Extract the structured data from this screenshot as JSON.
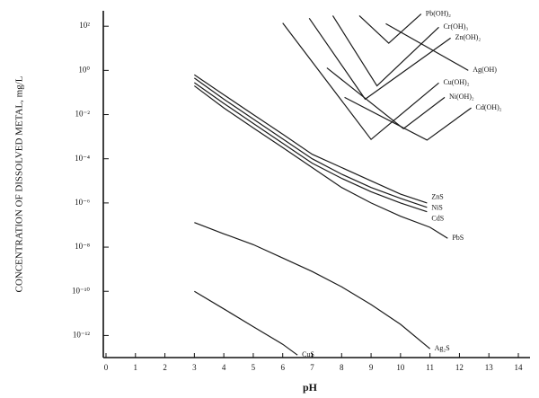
{
  "chart_data": {
    "type": "line",
    "x_label": "pH",
    "y_label": "CONCENTRATION OF DISSOLVED METAL, mg/L",
    "yscale": "log",
    "color": "#1a1a1a",
    "xlim": [
      0,
      14
    ],
    "xticks": [
      0,
      1,
      2,
      3,
      4,
      5,
      6,
      7,
      8,
      9,
      10,
      11,
      12,
      13,
      14
    ],
    "ylim": [
      1e-13,
      500
    ],
    "yticks": [
      {
        "value": 100,
        "label": "10²"
      },
      {
        "value": 1,
        "label": "10⁰"
      },
      {
        "value": 0.01,
        "label": "10⁻²"
      },
      {
        "value": 0.0001,
        "label": "10⁻⁴"
      },
      {
        "value": 1e-06,
        "label": "10⁻⁶"
      },
      {
        "value": 1e-08,
        "label": "10⁻⁸"
      },
      {
        "value": 1e-10,
        "label": "10⁻¹⁰"
      },
      {
        "value": 1e-12,
        "label": "10⁻¹²"
      }
    ],
    "series": [
      {
        "name": "Pb(OH)₂",
        "x": [
          8.6,
          9.6,
          10.7
        ],
        "values": [
          300,
          17,
          360
        ]
      },
      {
        "name": "Cr(OH)₃",
        "x": [
          7.7,
          9.2,
          11.3
        ],
        "values": [
          300,
          0.2,
          90
        ]
      },
      {
        "name": "Zn(OH)₂",
        "x": [
          6.9,
          8.8,
          11.7
        ],
        "values": [
          230,
          0.05,
          29
        ]
      },
      {
        "name": "Ag(OH)",
        "x": [
          9.5,
          12.3
        ],
        "values": [
          130,
          1
        ]
      },
      {
        "name": "Cu(OH)₂",
        "x": [
          6.0,
          9.0,
          11.3
        ],
        "values": [
          140,
          0.00075,
          0.27
        ]
      },
      {
        "name": "Ni(OH)₂",
        "x": [
          7.5,
          10.1,
          11.5
        ],
        "values": [
          1.3,
          0.0023,
          0.06
        ]
      },
      {
        "name": "Cd(OH)₂",
        "x": [
          8.1,
          10.9,
          12.4
        ],
        "values": [
          0.06,
          0.0007,
          0.02
        ]
      },
      {
        "name": "ZnS",
        "x": [
          3,
          4,
          5,
          6,
          7,
          8,
          9,
          10,
          10.9
        ],
        "values": [
          0.63,
          0.079,
          0.01,
          0.0013,
          0.00016,
          4e-05,
          1e-05,
          2.5e-06,
          1e-06
        ]
      },
      {
        "name": "NiS",
        "x": [
          3,
          4,
          5,
          6,
          7,
          8,
          9,
          10,
          10.9
        ],
        "values": [
          0.45,
          0.05,
          0.0063,
          0.00079,
          0.0001,
          2e-05,
          5e-06,
          1.6e-06,
          6.3e-07
        ]
      },
      {
        "name": "CdS",
        "x": [
          3,
          4,
          5,
          6,
          7,
          8,
          9,
          10,
          10.9
        ],
        "values": [
          0.28,
          0.032,
          0.004,
          0.0005,
          6.3e-05,
          1.3e-05,
          3.2e-06,
          1e-06,
          4e-07
        ]
      },
      {
        "name": "PbS",
        "x": [
          3,
          4,
          5,
          6,
          7,
          8,
          9,
          10,
          11,
          11.6
        ],
        "values": [
          0.2,
          0.02,
          0.0025,
          0.00032,
          4e-05,
          5e-06,
          1e-06,
          2.5e-07,
          7.9e-08,
          2.5e-08
        ]
      },
      {
        "name": "Ag₂S",
        "x": [
          3,
          4,
          5,
          6,
          7,
          8,
          9,
          10,
          11
        ],
        "values": [
          1.3e-07,
          4e-08,
          1.3e-08,
          3.2e-09,
          7.9e-10,
          1.6e-10,
          2.5e-11,
          3.2e-12,
          2.5e-13
        ]
      },
      {
        "name": "CuS",
        "x": [
          3,
          4,
          5,
          6,
          6.5
        ],
        "values": [
          1e-10,
          1.6e-11,
          2.5e-12,
          4e-13,
          1.3e-13
        ]
      }
    ]
  }
}
